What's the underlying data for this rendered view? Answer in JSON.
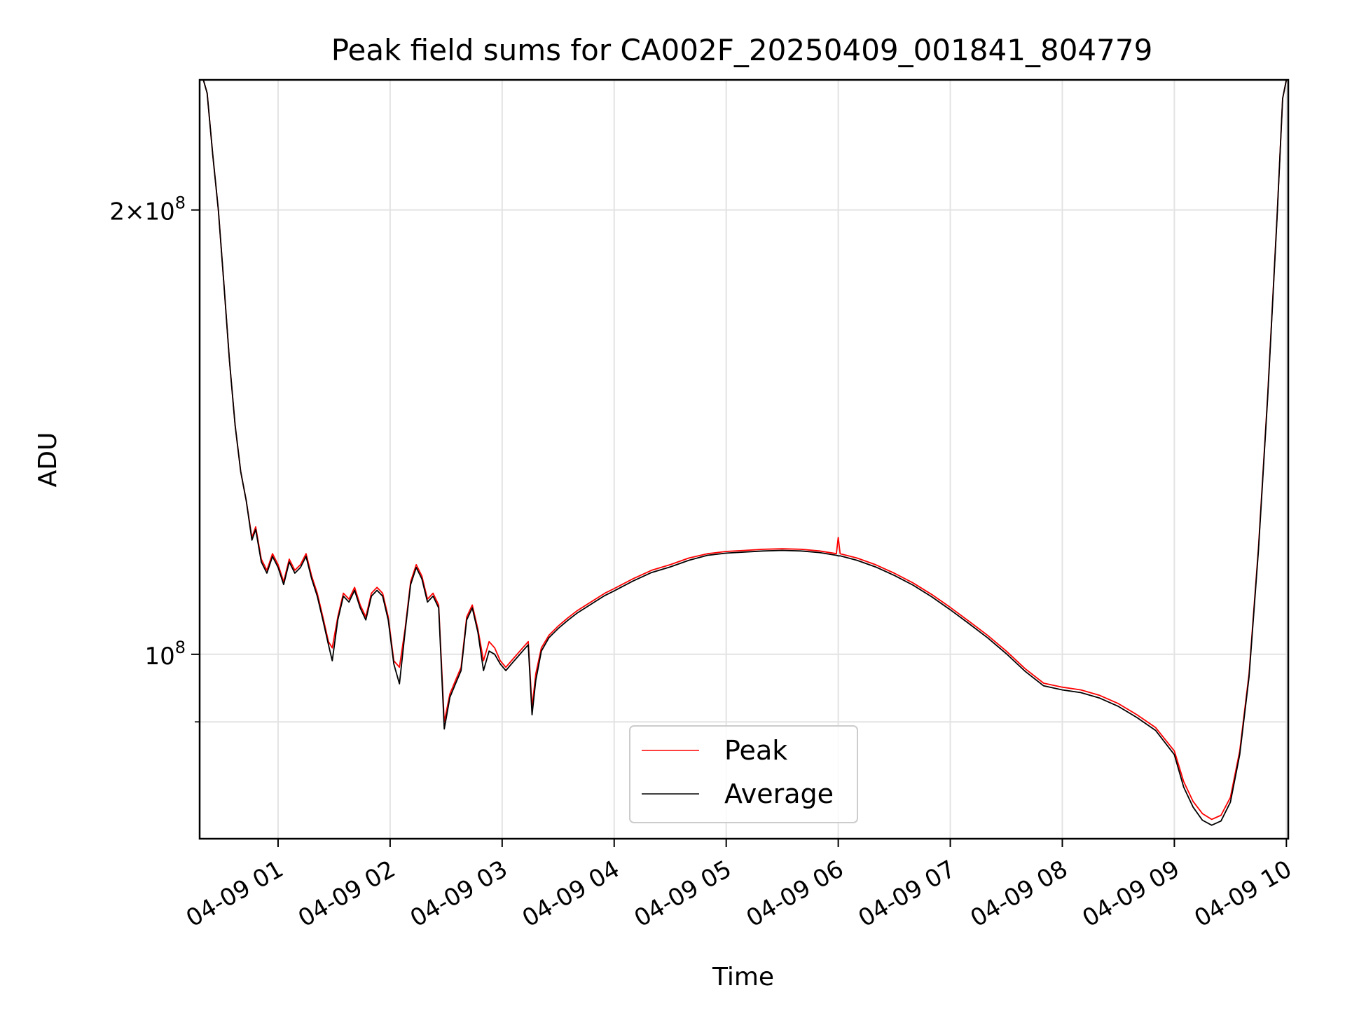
{
  "chart_data": {
    "type": "line",
    "title": "Peak field sums for CA002F_20250409_001841_804779",
    "xlabel": "Time",
    "ylabel": "ADU",
    "x_scale": "time",
    "y_scale": "log",
    "xlim": [
      "2025-04-09 00:18",
      "2025-04-09 10:01"
    ],
    "ylim": [
      75000000,
      245000000
    ],
    "x_ticks": [
      "04-09 01",
      "04-09 02",
      "04-09 03",
      "04-09 04",
      "04-09 05",
      "04-09 06",
      "04-09 07",
      "04-09 08",
      "04-09 09",
      "04-09 10"
    ],
    "y_ticks": [
      {
        "value": 100000000,
        "base": "10",
        "exp": "8",
        "coef": ""
      },
      {
        "value": 200000000,
        "base": "10",
        "exp": "8",
        "coef": "2"
      }
    ],
    "y_minor_ticks": [
      90000000
    ],
    "grid": true,
    "legend_position": "lower center",
    "series": [
      {
        "name": "Peak",
        "color": "#ff0000",
        "points": [
          [
            "00:18",
            245000000
          ],
          [
            "00:20",
            245000000
          ],
          [
            "00:22",
            240000000
          ],
          [
            "00:25",
            218000000
          ],
          [
            "00:28",
            200000000
          ],
          [
            "00:31",
            178000000
          ],
          [
            "00:34",
            158000000
          ],
          [
            "00:37",
            143000000
          ],
          [
            "00:40",
            133000000
          ],
          [
            "00:43",
            127000000
          ],
          [
            "00:46",
            120000000
          ],
          [
            "00:48",
            122000000
          ],
          [
            "00:51",
            116000000
          ],
          [
            "00:54",
            114000000
          ],
          [
            "00:57",
            117000000
          ],
          [
            "01:00",
            115000000
          ],
          [
            "01:03",
            112000000
          ],
          [
            "01:06",
            116000000
          ],
          [
            "01:09",
            114000000
          ],
          [
            "01:12",
            115000000
          ],
          [
            "01:15",
            117000000
          ],
          [
            "01:18",
            113000000
          ],
          [
            "01:21",
            110000000
          ],
          [
            "01:24",
            106000000
          ],
          [
            "01:27",
            102000000
          ],
          [
            "01:29",
            101000000
          ],
          [
            "01:32",
            106000000
          ],
          [
            "01:35",
            110000000
          ],
          [
            "01:38",
            109000000
          ],
          [
            "01:41",
            111000000
          ],
          [
            "01:44",
            108000000
          ],
          [
            "01:47",
            106000000
          ],
          [
            "01:50",
            110000000
          ],
          [
            "01:53",
            111000000
          ],
          [
            "01:56",
            110000000
          ],
          [
            "01:59",
            106000000
          ],
          [
            "02:02",
            99000000
          ],
          [
            "02:05",
            98000000
          ],
          [
            "02:08",
            104000000
          ],
          [
            "02:11",
            112000000
          ],
          [
            "02:14",
            115000000
          ],
          [
            "02:17",
            113000000
          ],
          [
            "02:20",
            109000000
          ],
          [
            "02:23",
            110000000
          ],
          [
            "02:26",
            108000000
          ],
          [
            "02:29",
            90000000
          ],
          [
            "02:32",
            94000000
          ],
          [
            "02:35",
            96000000
          ],
          [
            "02:38",
            98000000
          ],
          [
            "02:41",
            106000000
          ],
          [
            "02:44",
            108000000
          ],
          [
            "02:47",
            104000000
          ],
          [
            "02:50",
            99000000
          ],
          [
            "02:53",
            102000000
          ],
          [
            "02:56",
            101000000
          ],
          [
            "02:59",
            99000000
          ],
          [
            "03:02",
            98000000
          ],
          [
            "03:05",
            99000000
          ],
          [
            "03:08",
            100000000
          ],
          [
            "03:11",
            101000000
          ],
          [
            "03:14",
            102000000
          ],
          [
            "03:16",
            92000000
          ],
          [
            "03:18",
            97000000
          ],
          [
            "03:21",
            101000000
          ],
          [
            "03:25",
            103000000
          ],
          [
            "03:30",
            104500000
          ],
          [
            "03:35",
            105800000
          ],
          [
            "03:40",
            107000000
          ],
          [
            "03:45",
            108000000
          ],
          [
            "03:50",
            109000000
          ],
          [
            "03:55",
            110000000
          ],
          [
            "04:00",
            110800000
          ],
          [
            "04:10",
            112500000
          ],
          [
            "04:20",
            114000000
          ],
          [
            "04:30",
            115000000
          ],
          [
            "04:40",
            116200000
          ],
          [
            "04:50",
            117000000
          ],
          [
            "05:00",
            117400000
          ],
          [
            "05:10",
            117600000
          ],
          [
            "05:20",
            117800000
          ],
          [
            "05:30",
            117900000
          ],
          [
            "05:40",
            117800000
          ],
          [
            "05:50",
            117500000
          ],
          [
            "05:59",
            117000000
          ],
          [
            "06:00",
            120000000
          ],
          [
            "06:01",
            117000000
          ],
          [
            "06:10",
            116200000
          ],
          [
            "06:20",
            115000000
          ],
          [
            "06:30",
            113500000
          ],
          [
            "06:40",
            111800000
          ],
          [
            "06:50",
            109800000
          ],
          [
            "07:00",
            107600000
          ],
          [
            "07:10",
            105300000
          ],
          [
            "07:20",
            103000000
          ],
          [
            "07:30",
            100500000
          ],
          [
            "07:40",
            97800000
          ],
          [
            "07:50",
            95600000
          ],
          [
            "08:00",
            95000000
          ],
          [
            "08:10",
            94600000
          ],
          [
            "08:20",
            93800000
          ],
          [
            "08:30",
            92600000
          ],
          [
            "08:40",
            91000000
          ],
          [
            "08:50",
            89200000
          ],
          [
            "09:00",
            86000000
          ],
          [
            "09:05",
            82000000
          ],
          [
            "09:10",
            79500000
          ],
          [
            "09:15",
            78000000
          ],
          [
            "09:20",
            77300000
          ],
          [
            "09:25",
            77800000
          ],
          [
            "09:30",
            80000000
          ],
          [
            "09:35",
            86000000
          ],
          [
            "09:40",
            97000000
          ],
          [
            "09:45",
            118000000
          ],
          [
            "09:50",
            150000000
          ],
          [
            "09:55",
            198000000
          ],
          [
            "09:58",
            238000000
          ],
          [
            "10:00",
            245000000
          ]
        ]
      },
      {
        "name": "Average",
        "color": "#000000",
        "points": [
          [
            "00:18",
            245000000
          ],
          [
            "00:20",
            245000000
          ],
          [
            "00:22",
            240000000
          ],
          [
            "00:25",
            218000000
          ],
          [
            "00:28",
            200000000
          ],
          [
            "00:31",
            178000000
          ],
          [
            "00:34",
            158000000
          ],
          [
            "00:37",
            143000000
          ],
          [
            "00:40",
            133000000
          ],
          [
            "00:43",
            127000000
          ],
          [
            "00:46",
            119500000
          ],
          [
            "00:48",
            121500000
          ],
          [
            "00:51",
            115500000
          ],
          [
            "00:54",
            113500000
          ],
          [
            "00:57",
            116500000
          ],
          [
            "01:00",
            114500000
          ],
          [
            "01:03",
            111500000
          ],
          [
            "01:06",
            115500000
          ],
          [
            "01:09",
            113500000
          ],
          [
            "01:12",
            114500000
          ],
          [
            "01:15",
            116500000
          ],
          [
            "01:18",
            112500000
          ],
          [
            "01:21",
            109500000
          ],
          [
            "01:24",
            105500000
          ],
          [
            "01:27",
            101500000
          ],
          [
            "01:29",
            99000000
          ],
          [
            "01:32",
            105500000
          ],
          [
            "01:35",
            109500000
          ],
          [
            "01:38",
            108500000
          ],
          [
            "01:41",
            110500000
          ],
          [
            "01:44",
            107500000
          ],
          [
            "01:47",
            105500000
          ],
          [
            "01:50",
            109500000
          ],
          [
            "01:53",
            110500000
          ],
          [
            "01:56",
            109500000
          ],
          [
            "01:59",
            105500000
          ],
          [
            "02:02",
            98500000
          ],
          [
            "02:05",
            95500000
          ],
          [
            "02:08",
            103500000
          ],
          [
            "02:11",
            111500000
          ],
          [
            "02:14",
            114500000
          ],
          [
            "02:17",
            112500000
          ],
          [
            "02:20",
            108500000
          ],
          [
            "02:23",
            109500000
          ],
          [
            "02:26",
            107500000
          ],
          [
            "02:29",
            89000000
          ],
          [
            "02:32",
            93500000
          ],
          [
            "02:35",
            95500000
          ],
          [
            "02:38",
            97500000
          ],
          [
            "02:41",
            105500000
          ],
          [
            "02:44",
            107500000
          ],
          [
            "02:47",
            103500000
          ],
          [
            "02:50",
            97500000
          ],
          [
            "02:53",
            100500000
          ],
          [
            "02:56",
            100000000
          ],
          [
            "02:59",
            98500000
          ],
          [
            "03:02",
            97500000
          ],
          [
            "03:05",
            98500000
          ],
          [
            "03:08",
            99500000
          ],
          [
            "03:11",
            100500000
          ],
          [
            "03:14",
            101500000
          ],
          [
            "03:16",
            91000000
          ],
          [
            "03:18",
            96000000
          ],
          [
            "03:21",
            100500000
          ],
          [
            "03:25",
            102600000
          ],
          [
            "03:30",
            104100000
          ],
          [
            "03:35",
            105400000
          ],
          [
            "03:40",
            106600000
          ],
          [
            "03:45",
            107600000
          ],
          [
            "03:50",
            108600000
          ],
          [
            "03:55",
            109600000
          ],
          [
            "04:00",
            110400000
          ],
          [
            "04:10",
            112100000
          ],
          [
            "04:20",
            113600000
          ],
          [
            "04:30",
            114600000
          ],
          [
            "04:40",
            115800000
          ],
          [
            "04:50",
            116700000
          ],
          [
            "05:00",
            117100000
          ],
          [
            "05:10",
            117300000
          ],
          [
            "05:20",
            117500000
          ],
          [
            "05:30",
            117600000
          ],
          [
            "05:40",
            117500000
          ],
          [
            "05:50",
            117200000
          ],
          [
            "05:59",
            116700000
          ],
          [
            "06:00",
            116600000
          ],
          [
            "06:01",
            116600000
          ],
          [
            "06:10",
            115800000
          ],
          [
            "06:20",
            114600000
          ],
          [
            "06:30",
            113100000
          ],
          [
            "06:40",
            111400000
          ],
          [
            "06:50",
            109400000
          ],
          [
            "07:00",
            107200000
          ],
          [
            "07:10",
            104900000
          ],
          [
            "07:20",
            102600000
          ],
          [
            "07:30",
            100100000
          ],
          [
            "07:40",
            97400000
          ],
          [
            "07:50",
            95200000
          ],
          [
            "08:00",
            94600000
          ],
          [
            "08:10",
            94200000
          ],
          [
            "08:20",
            93400000
          ],
          [
            "08:30",
            92200000
          ],
          [
            "08:40",
            90600000
          ],
          [
            "08:50",
            88800000
          ],
          [
            "09:00",
            85500000
          ],
          [
            "09:05",
            81300000
          ],
          [
            "09:10",
            78800000
          ],
          [
            "09:15",
            77200000
          ],
          [
            "09:20",
            76600000
          ],
          [
            "09:25",
            77100000
          ],
          [
            "09:30",
            79400000
          ],
          [
            "09:35",
            85500000
          ],
          [
            "09:40",
            96500000
          ],
          [
            "09:45",
            117500000
          ],
          [
            "09:50",
            149500000
          ],
          [
            "09:55",
            197500000
          ],
          [
            "09:58",
            238000000
          ],
          [
            "10:00",
            245000000
          ]
        ]
      }
    ]
  }
}
